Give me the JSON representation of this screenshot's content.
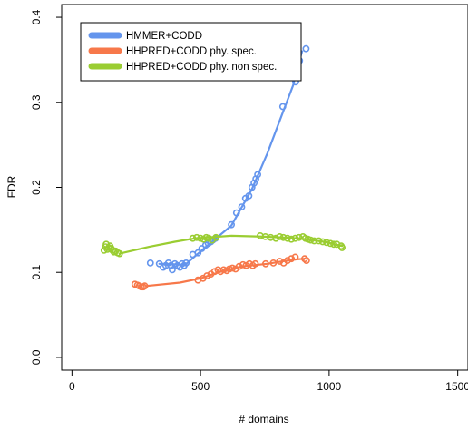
{
  "chart_data": {
    "type": "scatter",
    "title": "",
    "xlabel": "# domains",
    "ylabel": "FDR",
    "xlim": [
      -40,
      1540
    ],
    "ylim": [
      -0.015,
      0.415
    ],
    "xticks": [
      0,
      500,
      1000,
      1500
    ],
    "xtick_labels": [
      "0",
      "500",
      "1000",
      "1500"
    ],
    "yticks": [
      0.0,
      0.1,
      0.2,
      0.3,
      0.4
    ],
    "ytick_labels": [
      "0.0",
      "0.1",
      "0.2",
      "0.3",
      "0.4"
    ],
    "grid": false,
    "legend": "top-left",
    "series": [
      {
        "name": "HMMER+CODD",
        "color": "#6495ED",
        "points": [
          [
            305,
            0.111
          ],
          [
            340,
            0.11
          ],
          [
            355,
            0.106
          ],
          [
            365,
            0.108
          ],
          [
            375,
            0.111
          ],
          [
            385,
            0.108
          ],
          [
            390,
            0.103
          ],
          [
            400,
            0.11
          ],
          [
            410,
            0.108
          ],
          [
            420,
            0.106
          ],
          [
            428,
            0.11
          ],
          [
            436,
            0.108
          ],
          [
            444,
            0.111
          ],
          [
            470,
            0.121
          ],
          [
            490,
            0.123
          ],
          [
            505,
            0.128
          ],
          [
            520,
            0.132
          ],
          [
            530,
            0.134
          ],
          [
            540,
            0.136
          ],
          [
            548,
            0.138
          ],
          [
            558,
            0.14
          ],
          [
            620,
            0.156
          ],
          [
            640,
            0.17
          ],
          [
            660,
            0.177
          ],
          [
            675,
            0.187
          ],
          [
            688,
            0.19
          ],
          [
            700,
            0.2
          ],
          [
            708,
            0.205
          ],
          [
            715,
            0.21
          ],
          [
            722,
            0.215
          ],
          [
            820,
            0.295
          ],
          [
            870,
            0.324
          ],
          [
            885,
            0.349
          ],
          [
            910,
            0.363
          ]
        ],
        "trend": [
          [
            340,
            0.11
          ],
          [
            440,
            0.109
          ],
          [
            540,
            0.135
          ],
          [
            620,
            0.155
          ],
          [
            700,
            0.198
          ],
          [
            760,
            0.24
          ],
          [
            820,
            0.288
          ],
          [
            860,
            0.32
          ],
          [
            880,
            0.345
          ],
          [
            895,
            0.36
          ]
        ]
      },
      {
        "name": "HHPRED+CODD phy. spec.",
        "color": "#F7784A",
        "points": [
          [
            245,
            0.086
          ],
          [
            255,
            0.085
          ],
          [
            262,
            0.084
          ],
          [
            270,
            0.083
          ],
          [
            277,
            0.083
          ],
          [
            283,
            0.084
          ],
          [
            490,
            0.091
          ],
          [
            510,
            0.093
          ],
          [
            525,
            0.096
          ],
          [
            540,
            0.098
          ],
          [
            555,
            0.101
          ],
          [
            568,
            0.103
          ],
          [
            578,
            0.101
          ],
          [
            590,
            0.103
          ],
          [
            602,
            0.102
          ],
          [
            612,
            0.104
          ],
          [
            624,
            0.105
          ],
          [
            636,
            0.104
          ],
          [
            650,
            0.107
          ],
          [
            665,
            0.109
          ],
          [
            677,
            0.108
          ],
          [
            690,
            0.11
          ],
          [
            703,
            0.108
          ],
          [
            713,
            0.11
          ],
          [
            753,
            0.11
          ],
          [
            783,
            0.111
          ],
          [
            808,
            0.113
          ],
          [
            823,
            0.111
          ],
          [
            838,
            0.114
          ],
          [
            853,
            0.116
          ],
          [
            868,
            0.118
          ],
          [
            905,
            0.116
          ],
          [
            912,
            0.114
          ]
        ],
        "trend": [
          [
            290,
            0.084
          ],
          [
            420,
            0.088
          ],
          [
            500,
            0.093
          ],
          [
            580,
            0.101
          ],
          [
            660,
            0.107
          ],
          [
            760,
            0.11
          ],
          [
            860,
            0.115
          ],
          [
            905,
            0.116
          ]
        ]
      },
      {
        "name": "HHPRED+CODD phy. non spec.",
        "color": "#9ACD32",
        "points": [
          [
            125,
            0.126
          ],
          [
            130,
            0.13
          ],
          [
            133,
            0.133
          ],
          [
            138,
            0.127
          ],
          [
            143,
            0.129
          ],
          [
            148,
            0.131
          ],
          [
            153,
            0.128
          ],
          [
            158,
            0.126
          ],
          [
            163,
            0.124
          ],
          [
            170,
            0.125
          ],
          [
            178,
            0.123
          ],
          [
            185,
            0.122
          ],
          [
            470,
            0.14
          ],
          [
            485,
            0.141
          ],
          [
            500,
            0.14
          ],
          [
            512,
            0.139
          ],
          [
            522,
            0.141
          ],
          [
            532,
            0.14
          ],
          [
            545,
            0.138
          ],
          [
            560,
            0.141
          ],
          [
            732,
            0.143
          ],
          [
            752,
            0.142
          ],
          [
            773,
            0.141
          ],
          [
            793,
            0.14
          ],
          [
            808,
            0.142
          ],
          [
            822,
            0.141
          ],
          [
            838,
            0.14
          ],
          [
            853,
            0.139
          ],
          [
            868,
            0.14
          ],
          [
            883,
            0.141
          ],
          [
            898,
            0.142
          ],
          [
            908,
            0.14
          ],
          [
            918,
            0.139
          ],
          [
            928,
            0.138
          ],
          [
            942,
            0.137
          ],
          [
            960,
            0.137
          ],
          [
            975,
            0.136
          ],
          [
            990,
            0.135
          ],
          [
            1005,
            0.134
          ],
          [
            1018,
            0.133
          ],
          [
            1030,
            0.133
          ],
          [
            1047,
            0.131
          ],
          [
            1050,
            0.129
          ]
        ],
        "trend": [
          [
            185,
            0.122
          ],
          [
            300,
            0.13
          ],
          [
            400,
            0.136
          ],
          [
            480,
            0.14
          ],
          [
            620,
            0.143
          ],
          [
            750,
            0.142
          ],
          [
            880,
            0.14
          ],
          [
            980,
            0.136
          ],
          [
            1050,
            0.131
          ]
        ]
      }
    ]
  }
}
